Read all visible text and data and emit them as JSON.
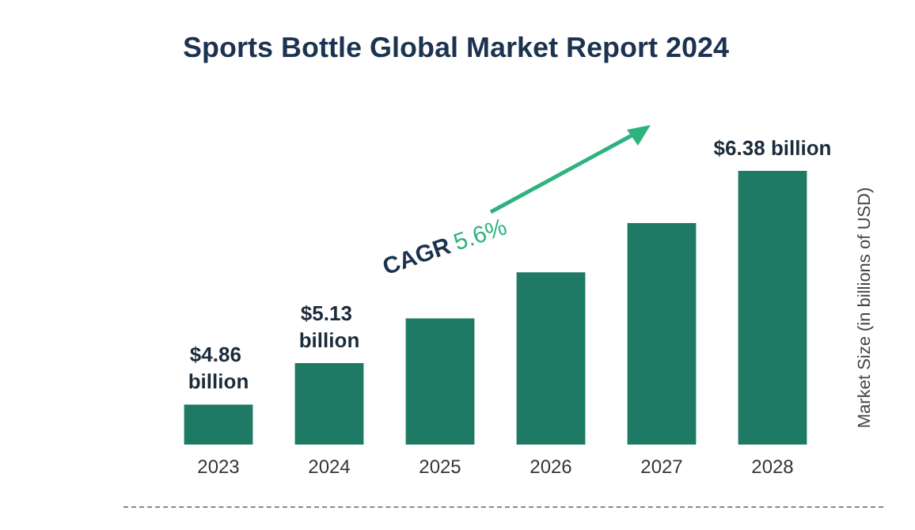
{
  "chart_data": {
    "type": "bar",
    "title": "Sports Bottle Global Market Report 2024",
    "ylabel": "Market Size (in billions of USD)",
    "categories": [
      "2023",
      "2024",
      "2025",
      "2026",
      "2027",
      "2028"
    ],
    "values": [
      4.86,
      5.13,
      5.42,
      5.72,
      6.04,
      6.38
    ],
    "value_labels": [
      "$4.86 billion",
      "$5.13 billion",
      null,
      null,
      null,
      "$6.38 billion"
    ],
    "color": "#1f7a65",
    "ylim": [
      4.6,
      6.38
    ],
    "tick_labels": "x",
    "grid": false,
    "annotations": [
      "CAGR 5.6%"
    ]
  }
}
